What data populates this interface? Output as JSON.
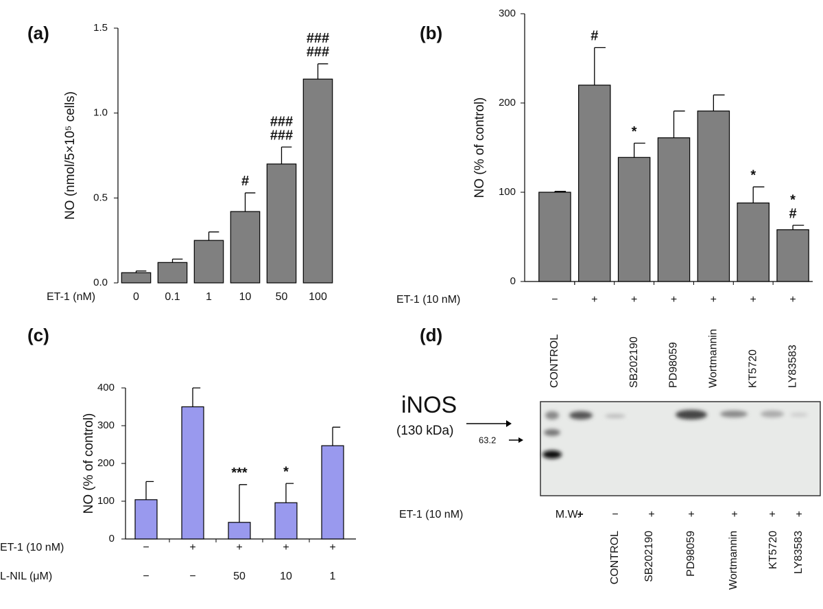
{
  "chart_data": [
    {
      "type": "bar",
      "panel": "(a)",
      "ylabel": "NO (nmol/5×10⁵ cells)",
      "categories": [
        "0",
        "0.1",
        "1",
        "10",
        "50",
        "100"
      ],
      "values": [
        0.06,
        0.12,
        0.25,
        0.42,
        0.7,
        1.2
      ],
      "errors": [
        0.01,
        0.02,
        0.05,
        0.11,
        0.1,
        0.09
      ],
      "annotations": [
        null,
        null,
        null,
        [
          "#"
        ],
        [
          "###",
          "###"
        ],
        [
          "###",
          "###"
        ]
      ],
      "xlabel": "ET-1 (nM)",
      "color": "#808080",
      "ylim": [
        0,
        1.5
      ],
      "yticks": [
        {
          "value": 0,
          "label": "0.0"
        },
        0.5,
        {
          "value": 1,
          "label": "1.0"
        },
        1.5
      ]
    },
    {
      "type": "bar",
      "panel": "(b)",
      "ylabel": "NO (% of control)",
      "categories": [
        "CONTROL",
        null,
        "SB202190",
        "PD98059",
        "Wortmannin",
        "KT5720",
        "LY83583"
      ],
      "values": [
        100,
        220,
        139,
        161,
        191,
        88,
        58
      ],
      "errors": [
        1,
        42,
        16,
        30,
        18,
        18,
        5
      ],
      "annotations": [
        null,
        [
          "#"
        ],
        [
          "*"
        ],
        null,
        null,
        [
          "*"
        ],
        [
          "*",
          "#"
        ]
      ],
      "rows": [
        {
          "label": "ET-1 (10 nM)",
          "values": [
            "−",
            "+",
            "+",
            "+",
            "+",
            "+",
            "+"
          ]
        }
      ],
      "color": "#808080",
      "ylim": [
        0,
        300
      ],
      "yticks": [
        0,
        100,
        200,
        300
      ]
    },
    {
      "type": "bar",
      "panel": "(c)",
      "ylabel": "NO (% of control)",
      "values": [
        104,
        350,
        44,
        96,
        247
      ],
      "errors": [
        48,
        50,
        100,
        51,
        49
      ],
      "annotations": [
        null,
        null,
        [
          "***"
        ],
        [
          "*"
        ],
        null
      ],
      "rows": [
        {
          "label": "ET-1 (10 nM)",
          "values": [
            "−",
            "+",
            "+",
            "+",
            "+"
          ]
        },
        {
          "label": "L-NIL (μM)",
          "values": [
            "−",
            "−",
            "50",
            "10",
            "1"
          ]
        }
      ],
      "color": "#9999ee",
      "ylim": [
        0,
        400
      ],
      "yticks": [
        0,
        100,
        200,
        300,
        400
      ]
    }
  ],
  "blot": {
    "panel": "(d)",
    "protein": "iNOS",
    "size": "(130 kDa)",
    "marker": "63.2",
    "row_label": "ET-1 (10 nM)",
    "lanes": [
      "M.W.",
      "+",
      "−",
      "+",
      "+",
      "+",
      "+",
      "+"
    ],
    "treatments": [
      "CONTROL",
      "SB202190",
      "PD98059",
      "Wortmannin",
      "KT5720",
      "LY83583"
    ]
  }
}
